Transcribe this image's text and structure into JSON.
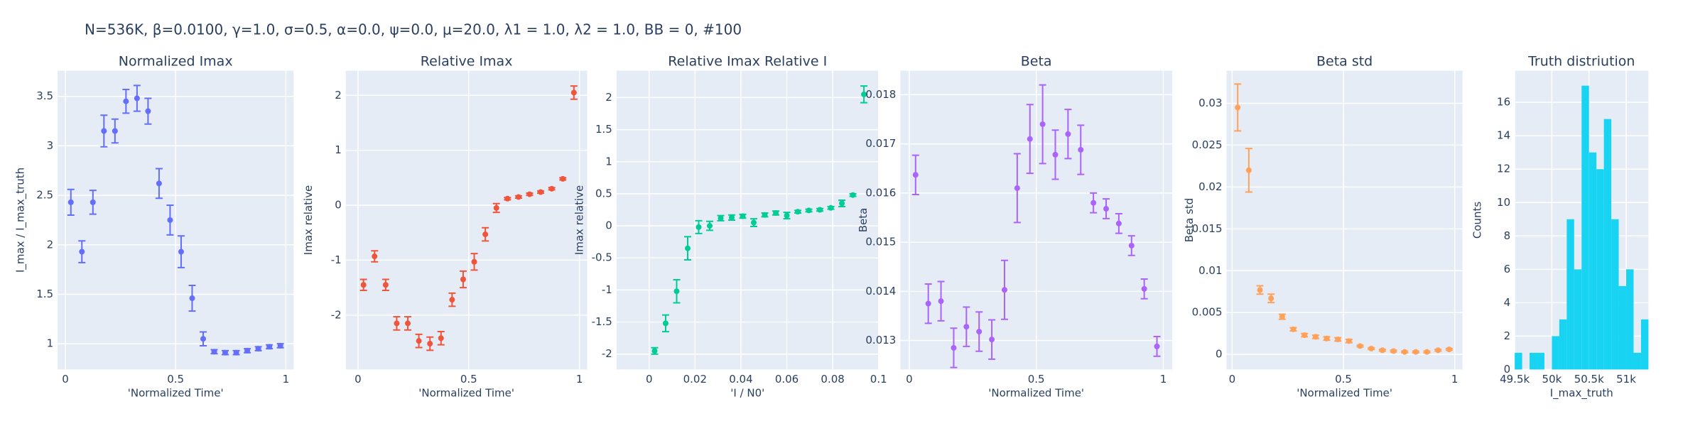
{
  "figure_title": "N=536K, β=0.0100, γ=1.0, σ=0.5,  α=0.0, ψ=0.0, μ=20.0, λ1 = 1.0, λ2 = 1.0, BB = 0, #100",
  "chart_data": [
    {
      "type": "scatter",
      "title": "Normalized Imax",
      "x_label": "'Normalized Time'",
      "y_label": "I_max / I_max_truth",
      "color": "#636efa",
      "x": [
        0.025,
        0.075,
        0.125,
        0.175,
        0.225,
        0.275,
        0.325,
        0.375,
        0.425,
        0.475,
        0.525,
        0.575,
        0.625,
        0.675,
        0.725,
        0.775,
        0.825,
        0.875,
        0.925,
        0.975
      ],
      "values": [
        2.43,
        1.93,
        2.43,
        3.15,
        3.15,
        3.45,
        3.48,
        3.35,
        2.62,
        2.25,
        1.93,
        1.46,
        1.05,
        0.92,
        0.91,
        0.91,
        0.93,
        0.95,
        0.97,
        0.98
      ],
      "errors": [
        0.13,
        0.11,
        0.12,
        0.16,
        0.12,
        0.12,
        0.13,
        0.13,
        0.15,
        0.15,
        0.16,
        0.13,
        0.07,
        0.02,
        0.02,
        0.02,
        0.02,
        0.02,
        0.02,
        0.02
      ],
      "xlim": [
        -0.035,
        1.035
      ],
      "xticks": [
        0,
        0.5,
        1
      ],
      "ylim": [
        0.74,
        3.76
      ],
      "yticks": [
        1,
        1.5,
        2,
        2.5,
        3,
        3.5
      ],
      "grid": true
    },
    {
      "type": "scatter",
      "title": "Relative Imax",
      "x_label": "'Normalized Time'",
      "y_label": "Imax relative",
      "color": "#EF553B",
      "x": [
        0.025,
        0.075,
        0.125,
        0.175,
        0.225,
        0.275,
        0.325,
        0.375,
        0.425,
        0.475,
        0.525,
        0.575,
        0.625,
        0.675,
        0.725,
        0.775,
        0.825,
        0.875,
        0.925,
        0.975
      ],
      "values": [
        -1.45,
        -0.93,
        -1.45,
        -2.15,
        -2.15,
        -2.47,
        -2.52,
        -2.42,
        -1.72,
        -1.35,
        -1.03,
        -0.53,
        -0.05,
        0.12,
        0.15,
        0.2,
        0.24,
        0.3,
        0.48,
        2.05
      ],
      "errors": [
        0.1,
        0.1,
        0.1,
        0.12,
        0.12,
        0.12,
        0.12,
        0.12,
        0.12,
        0.15,
        0.15,
        0.12,
        0.08,
        0.02,
        0.02,
        0.02,
        0.02,
        0.02,
        0.02,
        0.12
      ],
      "xlim": [
        -0.055,
        1.035
      ],
      "xticks": [
        0,
        0.5,
        1
      ],
      "ylim": [
        -2.99,
        2.45
      ],
      "yticks": [
        -2,
        -1,
        0,
        1,
        2
      ],
      "grid": true
    },
    {
      "type": "scatter",
      "title": "Relative Imax Relative I",
      "x_label": "'I / N0'",
      "y_label": "Imax relative",
      "color": "#00cc96",
      "x": [
        0.0024,
        0.0072,
        0.012,
        0.0168,
        0.0216,
        0.0264,
        0.0312,
        0.036,
        0.0408,
        0.0456,
        0.0504,
        0.0552,
        0.06,
        0.0648,
        0.0696,
        0.0744,
        0.0792,
        0.084,
        0.0888,
        0.0936
      ],
      "values": [
        -1.95,
        -1.52,
        -1.02,
        -0.35,
        -0.02,
        0.0,
        0.12,
        0.13,
        0.15,
        0.05,
        0.17,
        0.2,
        0.16,
        0.22,
        0.24,
        0.25,
        0.28,
        0.35,
        0.48,
        2.05
      ],
      "errors": [
        0.05,
        0.13,
        0.18,
        0.18,
        0.1,
        0.07,
        0.04,
        0.04,
        0.03,
        0.06,
        0.03,
        0.03,
        0.05,
        0.02,
        0.02,
        0.02,
        0.02,
        0.05,
        0.02,
        0.13
      ],
      "xlim": [
        -0.0142,
        0.1
      ],
      "xticks": [
        0,
        0.02,
        0.04,
        0.06,
        0.08,
        0.1
      ],
      "ylim": [
        -2.24,
        2.42
      ],
      "yticks": [
        -2,
        -1.5,
        -1,
        -0.5,
        0,
        0.5,
        1,
        1.5,
        2
      ],
      "grid": true
    },
    {
      "type": "scatter",
      "title": "Beta",
      "x_label": "'Normalized Time'",
      "y_label": "Beta",
      "color": "#ab63fa",
      "x": [
        0.025,
        0.075,
        0.125,
        0.175,
        0.225,
        0.275,
        0.325,
        0.375,
        0.425,
        0.475,
        0.525,
        0.575,
        0.625,
        0.675,
        0.725,
        0.775,
        0.825,
        0.875,
        0.925,
        0.975
      ],
      "values": [
        0.01637,
        0.01375,
        0.0138,
        0.01285,
        0.01328,
        0.01318,
        0.01302,
        0.01403,
        0.0161,
        0.0171,
        0.0174,
        0.01678,
        0.0172,
        0.01688,
        0.0158,
        0.01568,
        0.01538,
        0.01493,
        0.01405,
        0.01288
      ],
      "errors": [
        0.0004,
        0.0004,
        0.0004,
        0.0004,
        0.0004,
        0.0004,
        0.0004,
        0.0006,
        0.0007,
        0.0007,
        0.0008,
        0.0005,
        0.0005,
        0.0005,
        0.0002,
        0.0002,
        0.0002,
        0.0002,
        0.0002,
        0.0002
      ],
      "xlim": [
        -0.035,
        1.035
      ],
      "xticks": [
        0,
        0.5,
        1
      ],
      "ylim": [
        0.01241,
        0.01849
      ],
      "yticks": [
        0.013,
        0.014,
        0.015,
        0.016,
        0.017,
        0.018
      ],
      "grid": true
    },
    {
      "type": "scatter",
      "title": "Beta std",
      "x_label": "'Normalized Time'",
      "y_label": "Beta std",
      "color": "#FFA15A",
      "x": [
        0.025,
        0.075,
        0.125,
        0.175,
        0.225,
        0.275,
        0.325,
        0.375,
        0.425,
        0.475,
        0.525,
        0.575,
        0.625,
        0.675,
        0.725,
        0.775,
        0.825,
        0.875,
        0.925,
        0.975
      ],
      "values": [
        0.0295,
        0.022,
        0.0077,
        0.0067,
        0.0045,
        0.003,
        0.0023,
        0.0021,
        0.0019,
        0.0018,
        0.0016,
        0.001,
        0.0007,
        0.0005,
        0.0004,
        0.0003,
        0.0003,
        0.0003,
        0.0005,
        0.0006
      ],
      "errors": [
        0.0028,
        0.0026,
        0.0005,
        0.0005,
        0.0003,
        0.0002,
        0.0002,
        0.0002,
        0.0002,
        0.0002,
        0.0002,
        0.0001,
        0.0001,
        0.0001,
        0.0001,
        0.0001,
        0.0001,
        0.0001,
        0.0001,
        0.0001
      ],
      "xlim": [
        -0.025,
        1.035
      ],
      "xticks": [
        0,
        0.5,
        1
      ],
      "ylim": [
        -0.0018,
        0.0339
      ],
      "yticks": [
        0,
        0.005,
        0.01,
        0.015,
        0.02,
        0.025,
        0.03
      ],
      "grid": true
    },
    {
      "type": "histogram",
      "title": "Truth distriution",
      "x_label": "I_max_truth",
      "y_label": "Counts",
      "color": "#19d3f3",
      "bins": [
        49500,
        49600,
        49700,
        49800,
        49900,
        50000,
        50100,
        50200,
        50300,
        50400,
        50500,
        50600,
        50700,
        50800,
        50900,
        51000,
        51100,
        51200,
        51300
      ],
      "values": [
        1,
        0,
        1,
        1,
        0,
        2,
        3,
        9,
        6,
        17,
        13,
        12,
        15,
        9,
        5,
        6,
        1,
        3
      ],
      "xlim": [
        49500,
        51300
      ],
      "xticks": [
        {
          "value": 49500,
          "label": "49.5k"
        },
        {
          "value": 50000,
          "label": "50k"
        },
        {
          "value": 50500,
          "label": "50.5k"
        },
        {
          "value": 51000,
          "label": "51k"
        }
      ],
      "ylim": [
        0,
        17.9
      ],
      "yticks": [
        0,
        2,
        4,
        6,
        8,
        10,
        12,
        14,
        16
      ],
      "grid": true
    }
  ]
}
